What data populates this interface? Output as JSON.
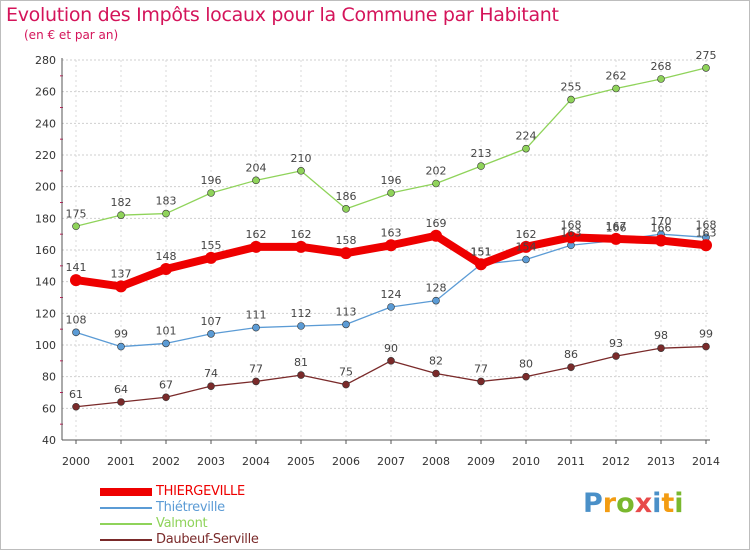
{
  "title": "Evolution des Impôts locaux pour la Commune par Habitant",
  "subtitle": "(en € et par an)",
  "brand": {
    "letters": [
      "P",
      "r",
      "o",
      "x",
      "i",
      "t",
      "i"
    ],
    "colors": [
      "#4a90c8",
      "#f39c12",
      "#7ab82e",
      "#e84a4a",
      "#4a90c8",
      "#f39c12",
      "#7ab82e"
    ]
  },
  "chart_data": {
    "type": "line",
    "title": "Evolution des Impôts locaux pour la Commune par Habitant",
    "ylabel": "(en € et par an)",
    "xlabel": "",
    "x": [
      2000,
      2001,
      2002,
      2003,
      2004,
      2005,
      2006,
      2007,
      2008,
      2009,
      2010,
      2011,
      2012,
      2013,
      2014
    ],
    "ylim": [
      40,
      280
    ],
    "yticks": [
      40,
      60,
      80,
      100,
      120,
      140,
      160,
      180,
      200,
      220,
      240,
      260,
      280
    ],
    "series": [
      {
        "name": "THIERGEVILLE",
        "color": "#ee0000",
        "width": 8,
        "values": [
          141,
          137,
          148,
          155,
          162,
          162,
          158,
          163,
          169,
          151,
          162,
          168,
          167,
          166,
          163
        ]
      },
      {
        "name": "Thiétreville",
        "color": "#5b9bd5",
        "width": 1.3,
        "values": [
          108,
          99,
          101,
          107,
          111,
          112,
          113,
          124,
          128,
          151,
          154,
          163,
          166,
          170,
          168
        ]
      },
      {
        "name": "Valmont",
        "color": "#8fd35a",
        "width": 1.3,
        "values": [
          175,
          182,
          183,
          196,
          204,
          210,
          186,
          196,
          202,
          213,
          224,
          255,
          262,
          268,
          275
        ]
      },
      {
        "name": "Daubeuf-Serville",
        "color": "#7a2a2a",
        "width": 1.3,
        "values": [
          61,
          64,
          67,
          74,
          77,
          81,
          75,
          90,
          82,
          77,
          80,
          86,
          93,
          98,
          99
        ]
      }
    ]
  }
}
